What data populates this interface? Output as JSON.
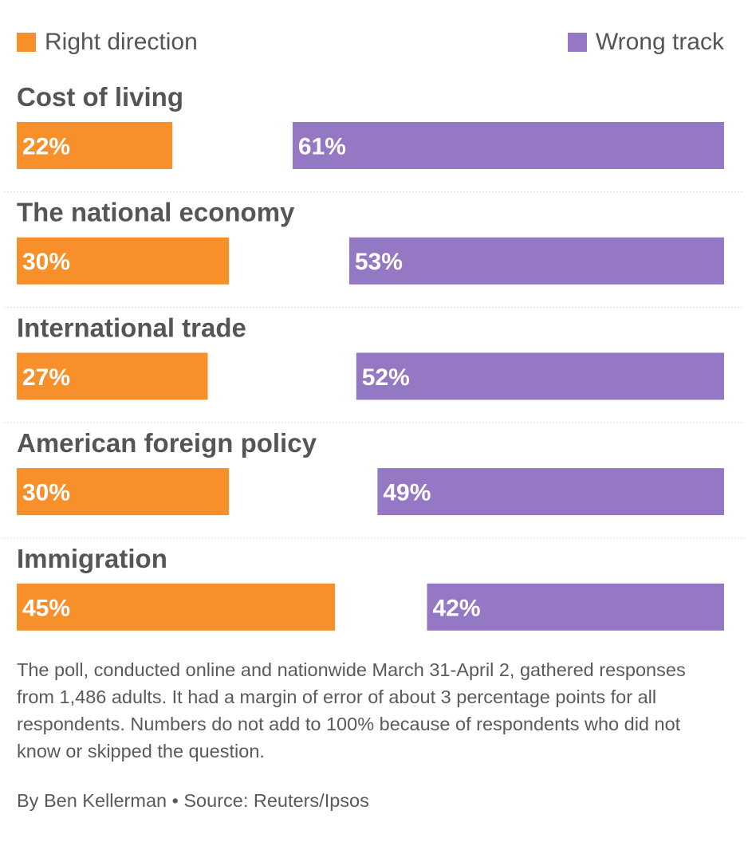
{
  "colors": {
    "right_direction": "#f7902b",
    "wrong_track": "#9578c4",
    "divider": "#dddddd",
    "title": "#555555"
  },
  "legend": {
    "right_direction": "Right direction",
    "wrong_track": "Wrong track"
  },
  "chart_data": {
    "type": "bar",
    "categories": [
      "Cost of living",
      "The national economy",
      "International trade",
      "American foreign policy",
      "Immigration"
    ],
    "series": [
      {
        "name": "Right direction",
        "values": [
          22,
          30,
          27,
          30,
          45
        ],
        "labels": [
          "22%",
          "30%",
          "27%",
          "30%",
          "45%"
        ]
      },
      {
        "name": "Wrong track",
        "values": [
          61,
          53,
          52,
          49,
          42
        ],
        "labels": [
          "61%",
          "53%",
          "52%",
          "49%",
          "42%"
        ]
      }
    ],
    "ylim": [
      0,
      100
    ],
    "orientation": "horizontal",
    "layout": "Right direction bars anchored at left, Wrong track bars anchored at right"
  },
  "note": "The poll, conducted online and nationwide March 31-April 2, gathered responses from 1,486 adults. It had a margin of error of about 3 percentage points for all respondents. Numbers do not add to 100% because of respondents who did not know or skipped the question.",
  "credit": "By Ben Kellerman • Source: Reuters/Ipsos"
}
